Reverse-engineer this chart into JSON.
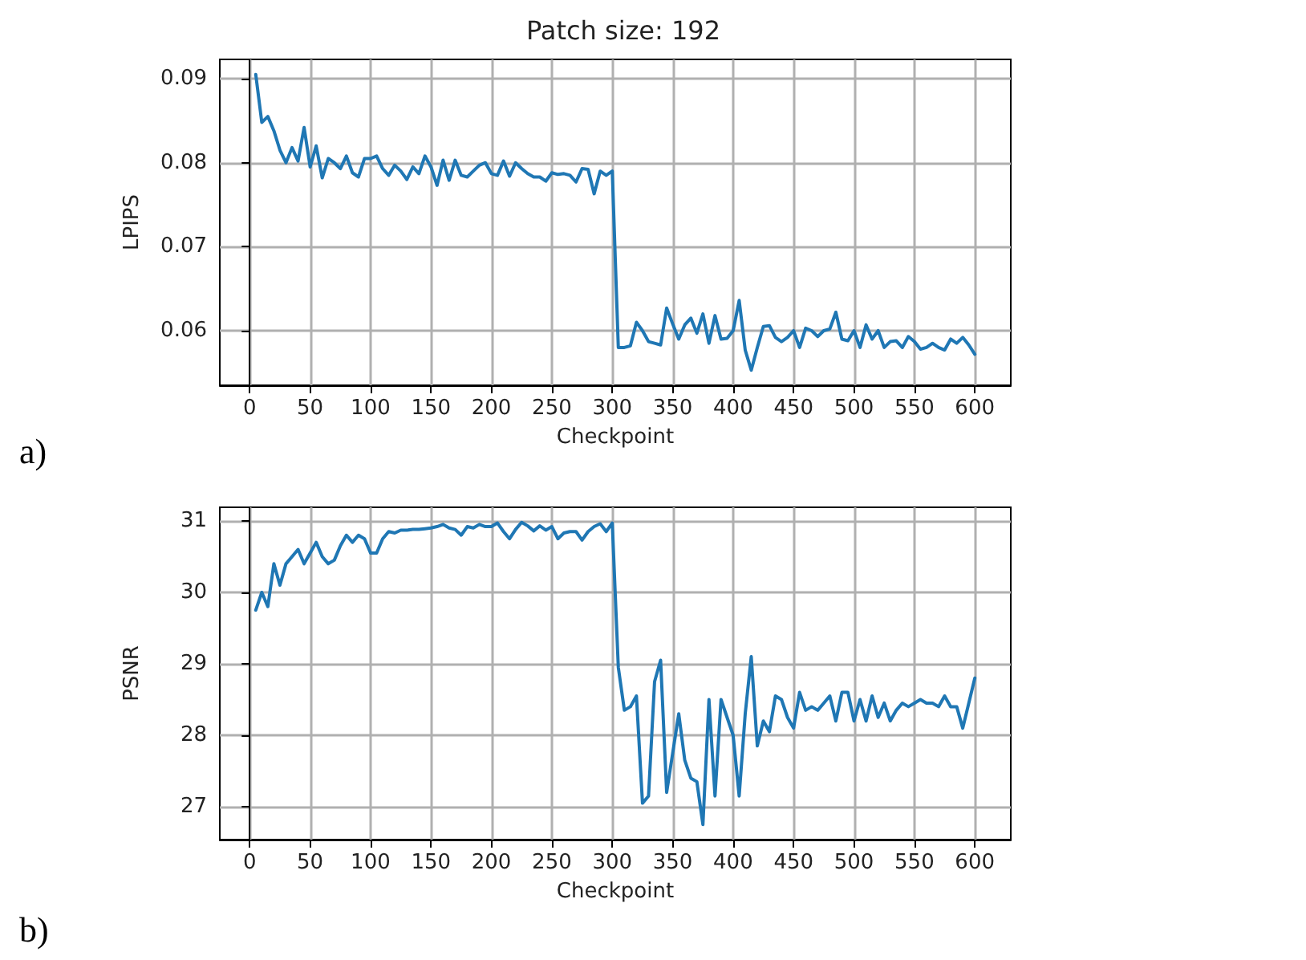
{
  "chart_data": [
    {
      "type": "line",
      "title": "Patch size: 192",
      "xlabel": "Checkpoint",
      "ylabel": "LPIPS",
      "annotations": [
        "a)"
      ],
      "grid": true,
      "marker": "none",
      "line_style": "solid",
      "xlim": [
        -24.75,
        629.75
      ],
      "xticks": [
        0,
        50,
        100,
        150,
        200,
        250,
        300,
        350,
        400,
        450,
        500,
        550,
        600
      ],
      "ylim": [
        0.0535,
        0.0923
      ],
      "yticks": [
        0.06,
        0.07,
        0.08,
        0.09
      ],
      "x": [
        5,
        10,
        15,
        20,
        25,
        30,
        35,
        40,
        45,
        50,
        55,
        60,
        65,
        70,
        75,
        80,
        85,
        90,
        95,
        100,
        105,
        110,
        115,
        120,
        125,
        130,
        135,
        140,
        145,
        150,
        155,
        160,
        165,
        170,
        175,
        180,
        185,
        190,
        195,
        200,
        205,
        210,
        215,
        220,
        225,
        230,
        235,
        240,
        245,
        250,
        255,
        260,
        265,
        270,
        275,
        280,
        285,
        290,
        295,
        300,
        305,
        310,
        315,
        320,
        325,
        330,
        335,
        340,
        345,
        350,
        355,
        360,
        365,
        370,
        375,
        380,
        385,
        390,
        395,
        400,
        405,
        410,
        415,
        420,
        425,
        430,
        435,
        440,
        445,
        450,
        455,
        460,
        465,
        470,
        475,
        480,
        485,
        490,
        495,
        500,
        505,
        510,
        515,
        520,
        525,
        530,
        535,
        540,
        545,
        550,
        555,
        560,
        565,
        570,
        575,
        580,
        585,
        590,
        595,
        600
      ],
      "series": [
        {
          "color": "#1f77b4",
          "values": [
            0.0905,
            0.0848,
            0.0855,
            0.0838,
            0.0815,
            0.08,
            0.0818,
            0.0802,
            0.0842,
            0.0795,
            0.082,
            0.0782,
            0.0805,
            0.08,
            0.0793,
            0.0808,
            0.0788,
            0.0783,
            0.0805,
            0.0805,
            0.0808,
            0.0793,
            0.0785,
            0.0797,
            0.079,
            0.078,
            0.0795,
            0.0787,
            0.0808,
            0.0795,
            0.0773,
            0.0803,
            0.0779,
            0.0803,
            0.0785,
            0.0783,
            0.079,
            0.0797,
            0.08,
            0.0787,
            0.0785,
            0.0802,
            0.0784,
            0.08,
            0.0793,
            0.0787,
            0.0783,
            0.0783,
            0.0778,
            0.0788,
            0.0786,
            0.0787,
            0.0785,
            0.0777,
            0.0793,
            0.0792,
            0.0763,
            0.079,
            0.0785,
            0.079,
            0.058,
            0.058,
            0.0582,
            0.061,
            0.06,
            0.0587,
            0.0585,
            0.0583,
            0.0627,
            0.0608,
            0.059,
            0.0607,
            0.0615,
            0.0597,
            0.062,
            0.0585,
            0.0618,
            0.059,
            0.0591,
            0.06,
            0.0636,
            0.0577,
            0.0553,
            0.058,
            0.0605,
            0.0606,
            0.0592,
            0.0587,
            0.0592,
            0.06,
            0.058,
            0.0603,
            0.06,
            0.0593,
            0.06,
            0.0602,
            0.0622,
            0.059,
            0.0588,
            0.06,
            0.058,
            0.0607,
            0.059,
            0.06,
            0.058,
            0.0587,
            0.0588,
            0.058,
            0.0593,
            0.0587,
            0.0578,
            0.058,
            0.0585,
            0.058,
            0.0577,
            0.059,
            0.0585,
            0.0592,
            0.0583,
            0.0572
          ]
        }
      ]
    },
    {
      "type": "line",
      "xlabel": "Checkpoint",
      "ylabel": "PSNR",
      "annotations": [
        "b)"
      ],
      "grid": true,
      "marker": "none",
      "line_style": "solid",
      "xlim": [
        -24.75,
        629.75
      ],
      "xticks": [
        0,
        50,
        100,
        150,
        200,
        250,
        300,
        350,
        400,
        450,
        500,
        550,
        600
      ],
      "ylim": [
        26.54,
        31.19
      ],
      "yticks": [
        27,
        28,
        29,
        30,
        31
      ],
      "x": [
        5,
        10,
        15,
        20,
        25,
        30,
        35,
        40,
        45,
        50,
        55,
        60,
        65,
        70,
        75,
        80,
        85,
        90,
        95,
        100,
        105,
        110,
        115,
        120,
        125,
        130,
        135,
        140,
        145,
        150,
        155,
        160,
        165,
        170,
        175,
        180,
        185,
        190,
        195,
        200,
        205,
        210,
        215,
        220,
        225,
        230,
        235,
        240,
        245,
        250,
        255,
        260,
        265,
        270,
        275,
        280,
        285,
        290,
        295,
        300,
        305,
        310,
        315,
        320,
        325,
        330,
        335,
        340,
        345,
        350,
        355,
        360,
        365,
        370,
        375,
        380,
        385,
        390,
        395,
        400,
        405,
        410,
        415,
        420,
        425,
        430,
        435,
        440,
        445,
        450,
        455,
        460,
        465,
        470,
        475,
        480,
        485,
        490,
        495,
        500,
        505,
        510,
        515,
        520,
        525,
        530,
        535,
        540,
        545,
        550,
        555,
        560,
        565,
        570,
        575,
        580,
        585,
        590,
        595,
        600
      ],
      "series": [
        {
          "color": "#1f77b4",
          "values": [
            29.75,
            30.0,
            29.8,
            30.4,
            30.1,
            30.4,
            30.5,
            30.6,
            30.4,
            30.55,
            30.7,
            30.5,
            30.4,
            30.45,
            30.65,
            30.8,
            30.7,
            30.8,
            30.75,
            30.55,
            30.55,
            30.75,
            30.85,
            30.83,
            30.87,
            30.87,
            30.88,
            30.88,
            30.89,
            30.9,
            30.92,
            30.95,
            30.9,
            30.88,
            30.8,
            30.92,
            30.9,
            30.95,
            30.92,
            30.92,
            30.97,
            30.85,
            30.75,
            30.88,
            30.98,
            30.93,
            30.86,
            30.93,
            30.87,
            30.92,
            30.75,
            30.83,
            30.85,
            30.85,
            30.73,
            30.85,
            30.92,
            30.96,
            30.85,
            30.97,
            28.95,
            28.35,
            28.4,
            28.55,
            27.05,
            27.15,
            28.75,
            29.05,
            27.2,
            27.75,
            28.3,
            27.65,
            27.4,
            27.35,
            26.75,
            28.5,
            27.15,
            28.5,
            28.25,
            28.0,
            27.15,
            28.3,
            29.1,
            27.85,
            28.2,
            28.05,
            28.55,
            28.5,
            28.25,
            28.1,
            28.6,
            28.35,
            28.4,
            28.35,
            28.45,
            28.55,
            28.2,
            28.6,
            28.6,
            28.2,
            28.5,
            28.2,
            28.55,
            28.25,
            28.45,
            28.2,
            28.35,
            28.45,
            28.4,
            28.45,
            28.5,
            28.45,
            28.45,
            28.4,
            28.55,
            28.4,
            28.4,
            28.1,
            28.45,
            28.8
          ]
        }
      ]
    }
  ]
}
